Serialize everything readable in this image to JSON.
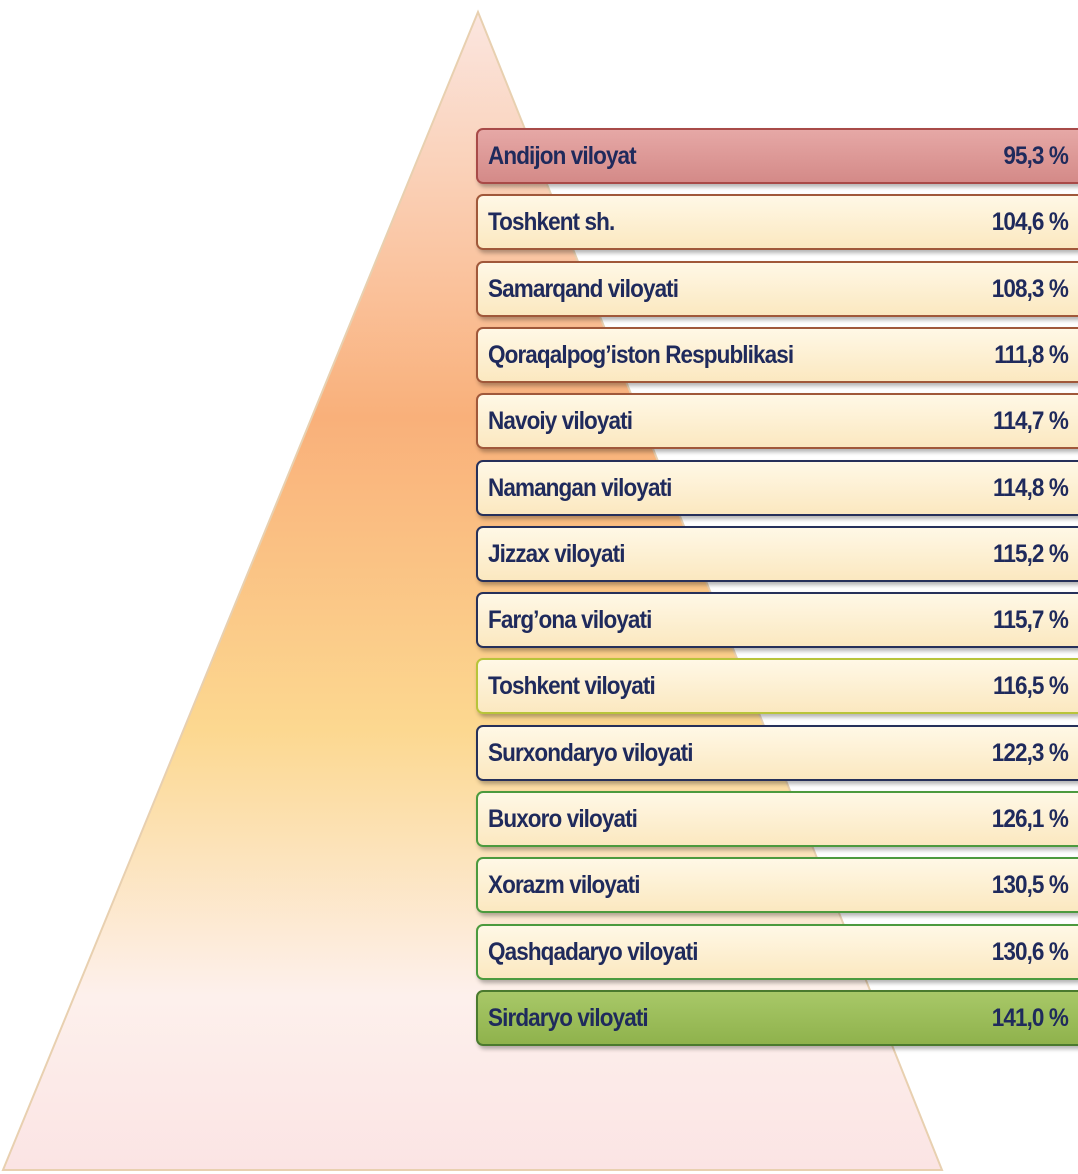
{
  "rows": [
    {
      "name": "Andijon viloyat",
      "value": "95,3 %"
    },
    {
      "name": "Toshkent sh.",
      "value": "104,6 %"
    },
    {
      "name": "Samarqand viloyati",
      "value": "108,3 %"
    },
    {
      "name": "Qoraqalpog’iston Respublikasi",
      "value": "111,8 %"
    },
    {
      "name": "Navoiy viloyati",
      "value": "114,7 %"
    },
    {
      "name": "Namangan viloyati",
      "value": "114,8 %"
    },
    {
      "name": "Jizzax viloyati",
      "value": "115,2 %"
    },
    {
      "name": "Farg’ona viloyati",
      "value": "115,7 %"
    },
    {
      "name": "Toshkent viloyati",
      "value": "116,5 %"
    },
    {
      "name": "Surxondaryo viloyati",
      "value": "122,3 %"
    },
    {
      "name": "Buxoro viloyati",
      "value": "126,1 %"
    },
    {
      "name": "Xorazm viloyati",
      "value": "130,5 %"
    },
    {
      "name": "Qashqadaryo viloyati",
      "value": "130,6 %"
    },
    {
      "name": "Sirdaryo viloyati",
      "value": "141,0 %"
    }
  ]
}
